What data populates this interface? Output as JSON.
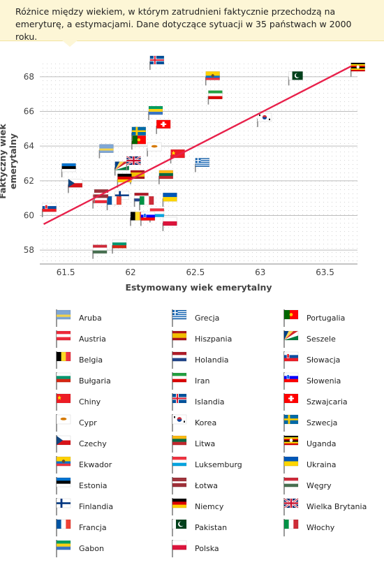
{
  "header": {
    "title": "Różnice między wiekiem, w którym zatrudnieni faktycznie przechodzą na emeryturę, a estymacjami. Dane dotyczące sytuacji w 35 państwach w 2000 roku."
  },
  "chart_data": {
    "type": "scatter",
    "title": "Różnice między wiekiem, w którym zatrudnieni faktycznie przechodzą na emeryturę, a estymacjami. Dane dotyczące sytuacji w 35 państwach w 2000 roku.",
    "xlabel": "Estymowany wiek emerytalny",
    "ylabel": "Faktyczny wiek emerytalny",
    "xlim": [
      61.3,
      63.75
    ],
    "ylim": [
      57.2,
      68.8
    ],
    "xticks": [
      61.5,
      62,
      62.5,
      63,
      63.5
    ],
    "yticks": [
      58,
      60,
      62,
      64,
      66,
      68
    ],
    "grid": "horizontal",
    "trend_line": {
      "x": [
        61.33,
        63.7
      ],
      "y": [
        59.5,
        68.6
      ],
      "color": "#e8204a"
    },
    "points": [
      {
        "name": "Aruba",
        "x": 61.76,
        "y": 63.7
      },
      {
        "name": "Austria",
        "x": 61.71,
        "y": 60.8
      },
      {
        "name": "Belgia",
        "x": 62.0,
        "y": 59.8
      },
      {
        "name": "Bułgaria",
        "x": 61.86,
        "y": 58.2
      },
      {
        "name": "Chiny",
        "x": 62.31,
        "y": 63.4
      },
      {
        "name": "Cypr",
        "x": 62.13,
        "y": 63.8
      },
      {
        "name": "Czechy",
        "x": 61.52,
        "y": 61.7
      },
      {
        "name": "Ekwador",
        "x": 62.58,
        "y": 67.9
      },
      {
        "name": "Estonia",
        "x": 61.47,
        "y": 62.6
      },
      {
        "name": "Finlandia",
        "x": 61.88,
        "y": 61.0
      },
      {
        "name": "Francja",
        "x": 61.82,
        "y": 60.7
      },
      {
        "name": "Gabon",
        "x": 62.14,
        "y": 65.9
      },
      {
        "name": "Grecja",
        "x": 62.5,
        "y": 62.9
      },
      {
        "name": "Hiszpania",
        "x": 62.0,
        "y": 62.2
      },
      {
        "name": "Holandia",
        "x": 62.03,
        "y": 60.9
      },
      {
        "name": "Iran",
        "x": 62.6,
        "y": 66.8
      },
      {
        "name": "Islandia",
        "x": 62.15,
        "y": 68.8
      },
      {
        "name": "Korea",
        "x": 62.98,
        "y": 65.5
      },
      {
        "name": "Litwa",
        "x": 62.22,
        "y": 62.2
      },
      {
        "name": "Luksemburg",
        "x": 62.15,
        "y": 60.0
      },
      {
        "name": "Łotwa",
        "x": 61.72,
        "y": 61.1
      },
      {
        "name": "Niemcy",
        "x": 61.9,
        "y": 62.0
      },
      {
        "name": "Pakistan",
        "x": 63.22,
        "y": 67.9
      },
      {
        "name": "Polska",
        "x": 62.25,
        "y": 59.5
      },
      {
        "name": "Portugalia",
        "x": 62.01,
        "y": 64.2
      },
      {
        "name": "Seszele",
        "x": 61.88,
        "y": 62.7
      },
      {
        "name": "Słowacja",
        "x": 61.32,
        "y": 60.3
      },
      {
        "name": "Słowenia",
        "x": 62.08,
        "y": 59.8
      },
      {
        "name": "Szwajcaria",
        "x": 62.2,
        "y": 65.1
      },
      {
        "name": "Szwecja",
        "x": 62.01,
        "y": 64.7
      },
      {
        "name": "Uganda",
        "x": 63.7,
        "y": 68.4
      },
      {
        "name": "Ukraina",
        "x": 62.25,
        "y": 60.9
      },
      {
        "name": "Węgry",
        "x": 61.71,
        "y": 57.9
      },
      {
        "name": "Wielka Brytania",
        "x": 61.97,
        "y": 63.0
      },
      {
        "name": "Włochy",
        "x": 62.07,
        "y": 60.7
      }
    ]
  },
  "legend": {
    "columns": [
      [
        "Aruba",
        "Austria",
        "Belgia",
        "Bułgaria",
        "Chiny",
        "Cypr",
        "Czechy",
        "Ekwador",
        "Estonia",
        "Finlandia",
        "Francja",
        "Gabon"
      ],
      [
        "Grecja",
        "Hiszpania",
        "Holandia",
        "Iran",
        "Islandia",
        "Korea",
        "Litwa",
        "Luksemburg",
        "Łotwa",
        "Niemcy",
        "Pakistan",
        "Polska"
      ],
      [
        "Portugalia",
        "Seszele",
        "Słowacja",
        "Słowenia",
        "Szwajcaria",
        "Szwecja",
        "Uganda",
        "Ukraina",
        "Węgry",
        "Wielka Brytania",
        "Włochy"
      ]
    ]
  },
  "flags": {
    "Aruba": {
      "kind": "stripes",
      "colors": [
        "#7ea6d4",
        "#7ea6d4",
        "#f2d24b",
        "#7ea6d4"
      ]
    },
    "Austria": {
      "kind": "stripes",
      "colors": [
        "#ed2939",
        "#ffffff",
        "#ed2939"
      ]
    },
    "Belgia": {
      "kind": "vstripes",
      "colors": [
        "#000000",
        "#fdda24",
        "#ef3340"
      ]
    },
    "Bułgaria": {
      "kind": "stripes",
      "colors": [
        "#ffffff",
        "#00966e",
        "#d62612"
      ]
    },
    "Chiny": {
      "kind": "solid",
      "colors": [
        "#ee1c25"
      ],
      "mark": "star",
      "mark_color": "#ffde00"
    },
    "Cypr": {
      "kind": "solid",
      "colors": [
        "#ffffff"
      ],
      "mark": "blob",
      "mark_color": "#d57800"
    },
    "Czechy": {
      "kind": "triangle",
      "colors": [
        "#ffffff",
        "#d7141a",
        "#11457e"
      ]
    },
    "Ekwador": {
      "kind": "stripes",
      "colors": [
        "#ffd100",
        "#ffd100",
        "#0072ce",
        "#ef3340"
      ],
      "mark": "dot",
      "mark_color": "#6b4c2a"
    },
    "Estonia": {
      "kind": "stripes",
      "colors": [
        "#0072ce",
        "#000000",
        "#ffffff"
      ]
    },
    "Finlandia": {
      "kind": "nordic",
      "colors": [
        "#ffffff",
        "#003580"
      ]
    },
    "Francja": {
      "kind": "vstripes",
      "colors": [
        "#0055a4",
        "#ffffff",
        "#ef4135"
      ]
    },
    "Gabon": {
      "kind": "stripes",
      "colors": [
        "#009e60",
        "#fcd116",
        "#3a75c4"
      ]
    },
    "Grecja": {
      "kind": "stripes9",
      "colors": [
        "#0d5eaf",
        "#ffffff"
      ]
    },
    "Hiszpania": {
      "kind": "stripes",
      "colors": [
        "#aa151b",
        "#f1bf00",
        "#f1bf00",
        "#aa151b"
      ]
    },
    "Holandia": {
      "kind": "stripes",
      "colors": [
        "#ae1c28",
        "#ffffff",
        "#21468b"
      ]
    },
    "Iran": {
      "kind": "stripes",
      "colors": [
        "#239f40",
        "#ffffff",
        "#da0000"
      ]
    },
    "Islandia": {
      "kind": "nordic2",
      "colors": [
        "#02529c",
        "#ffffff",
        "#dc1e35"
      ]
    },
    "Korea": {
      "kind": "solid",
      "colors": [
        "#ffffff"
      ],
      "mark": "taeguk",
      "mark_color": "#cd2e3a"
    },
    "Litwa": {
      "kind": "stripes",
      "colors": [
        "#fdb913",
        "#006a44",
        "#c1272d"
      ]
    },
    "Luksemburg": {
      "kind": "stripes",
      "colors": [
        "#ef3340",
        "#ffffff",
        "#00a3e0"
      ]
    },
    "Łotwa": {
      "kind": "stripes",
      "colors": [
        "#9e3039",
        "#9e3039",
        "#ffffff",
        "#9e3039",
        "#9e3039"
      ]
    },
    "Niemcy": {
      "kind": "stripes",
      "colors": [
        "#000000",
        "#dd0000",
        "#ffce00"
      ]
    },
    "Pakistan": {
      "kind": "pakistan",
      "colors": [
        "#ffffff",
        "#01411c"
      ]
    },
    "Polska": {
      "kind": "stripes",
      "colors": [
        "#ffffff",
        "#dc143c"
      ]
    },
    "Portugalia": {
      "kind": "vstripes2",
      "colors": [
        "#006600",
        "#ff0000"
      ],
      "mark": "dot",
      "mark_color": "#ffcc00"
    },
    "Seszele": {
      "kind": "seychelles",
      "colors": [
        "#003f87",
        "#fcd856",
        "#d62828",
        "#ffffff",
        "#007a3d"
      ]
    },
    "Słowacja": {
      "kind": "stripes",
      "colors": [
        "#ffffff",
        "#0b4ea2",
        "#ee1c25"
      ],
      "mark": "shield",
      "mark_color": "#ee1c25"
    },
    "Słowenia": {
      "kind": "stripes",
      "colors": [
        "#ffffff",
        "#0000ff",
        "#ff0000"
      ],
      "mark": "shield",
      "mark_color": "#005ce5"
    },
    "Szwajcaria": {
      "kind": "swiss",
      "colors": [
        "#ff0000",
        "#ffffff"
      ]
    },
    "Szwecja": {
      "kind": "nordic",
      "colors": [
        "#006aa7",
        "#fecc00"
      ]
    },
    "Uganda": {
      "kind": "stripes",
      "colors": [
        "#000000",
        "#fcdc04",
        "#d90000",
        "#000000",
        "#fcdc04",
        "#d90000"
      ],
      "mark": "dot",
      "mark_color": "#ffffff"
    },
    "Ukraina": {
      "kind": "stripes",
      "colors": [
        "#0057b7",
        "#ffd700"
      ]
    },
    "Węgry": {
      "kind": "stripes",
      "colors": [
        "#ce2939",
        "#ffffff",
        "#477050"
      ]
    },
    "Wielka Brytania": {
      "kind": "uk",
      "colors": [
        "#012169",
        "#ffffff",
        "#c8102e"
      ]
    },
    "Włochy": {
      "kind": "vstripes",
      "colors": [
        "#009246",
        "#ffffff",
        "#ce2b37"
      ]
    }
  }
}
